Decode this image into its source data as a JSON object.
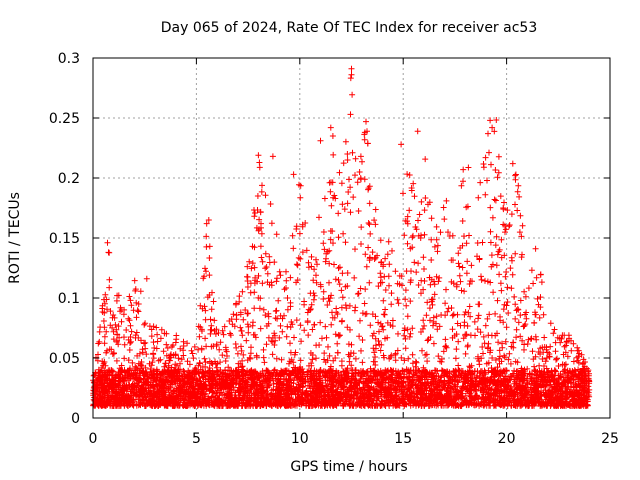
{
  "chart_data": {
    "type": "scatter",
    "title": "Day 065 of 2024, Rate Of TEC Index for receiver ac53",
    "xlabel": "GPS time / hours",
    "ylabel": "ROTI / TECUs",
    "xlim": [
      0,
      25
    ],
    "ylim": [
      0,
      0.3
    ],
    "x_ticks": [
      "0",
      "5",
      "10",
      "15",
      "20",
      "25"
    ],
    "y_ticks": [
      "0",
      "0.05",
      "0.1",
      "0.15",
      "0.2",
      "0.25",
      "0.3"
    ],
    "grid": true,
    "marker": "+",
    "color": "#ff0000",
    "series": [
      {
        "name": "",
        "envelope_x": [
          0,
          0.5,
          0.8,
          1.5,
          2.0,
          3.0,
          4.0,
          5.0,
          5.5,
          6.0,
          7.0,
          7.5,
          8.0,
          8.5,
          9.0,
          9.5,
          10.0,
          10.5,
          11.0,
          11.5,
          12.0,
          12.5,
          13.0,
          13.5,
          14.0,
          14.5,
          15.0,
          15.5,
          16.0,
          16.5,
          17.0,
          17.5,
          18.0,
          18.5,
          19.0,
          19.5,
          20.0,
          20.5,
          21.0,
          21.5,
          22.0,
          22.5,
          23.0,
          23.5,
          24.0
        ],
        "envelope_y": [
          0.04,
          0.1,
          0.145,
          0.09,
          0.12,
          0.08,
          0.07,
          0.06,
          0.165,
          0.07,
          0.1,
          0.13,
          0.22,
          0.19,
          0.16,
          0.15,
          0.2,
          0.14,
          0.18,
          0.24,
          0.2,
          0.29,
          0.25,
          0.22,
          0.16,
          0.14,
          0.23,
          0.2,
          0.24,
          0.17,
          0.19,
          0.15,
          0.22,
          0.2,
          0.23,
          0.25,
          0.2,
          0.21,
          0.12,
          0.14,
          0.09,
          0.07,
          0.07,
          0.06,
          0.04
        ],
        "baseline_range": [
          0.01,
          0.04
        ],
        "point_count": 6000
      }
    ],
    "extreme_points": [
      {
        "x": 12.5,
        "y": 0.291
      },
      {
        "x": 12.5,
        "y": 0.286
      },
      {
        "x": 12.45,
        "y": 0.253
      },
      {
        "x": 13.2,
        "y": 0.247
      },
      {
        "x": 13.15,
        "y": 0.238
      },
      {
        "x": 13.25,
        "y": 0.239
      },
      {
        "x": 15.7,
        "y": 0.239
      },
      {
        "x": 19.2,
        "y": 0.248
      },
      {
        "x": 19.3,
        "y": 0.242
      },
      {
        "x": 19.1,
        "y": 0.237
      },
      {
        "x": 11.5,
        "y": 0.242
      },
      {
        "x": 11.0,
        "y": 0.231
      },
      {
        "x": 11.6,
        "y": 0.235
      },
      {
        "x": 8.0,
        "y": 0.219
      },
      {
        "x": 8.7,
        "y": 0.218
      },
      {
        "x": 12.7,
        "y": 0.216
      },
      {
        "x": 12.3,
        "y": 0.22
      },
      {
        "x": 14.9,
        "y": 0.228
      },
      {
        "x": 20.3,
        "y": 0.212
      },
      {
        "x": 17.9,
        "y": 0.207
      },
      {
        "x": 18.9,
        "y": 0.209
      },
      {
        "x": 9.7,
        "y": 0.203
      },
      {
        "x": 5.6,
        "y": 0.165
      },
      {
        "x": 5.5,
        "y": 0.162
      },
      {
        "x": 5.65,
        "y": 0.143
      },
      {
        "x": 0.7,
        "y": 0.146
      },
      {
        "x": 0.75,
        "y": 0.138
      },
      {
        "x": 2.6,
        "y": 0.116
      },
      {
        "x": 16.2,
        "y": 0.178
      },
      {
        "x": 21.4,
        "y": 0.141
      }
    ]
  }
}
